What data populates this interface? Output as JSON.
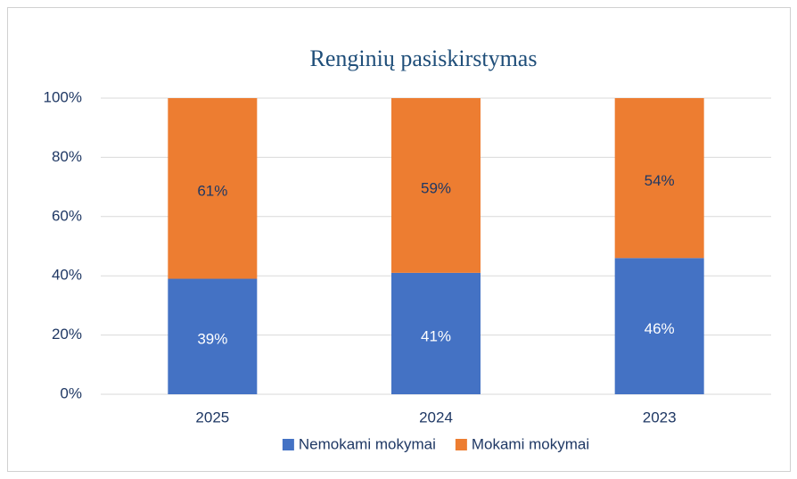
{
  "chart_data": {
    "type": "stacked_bar",
    "title": "Renginių pasiskirstymas",
    "categories": [
      "2025",
      "2024",
      "2023"
    ],
    "series": [
      {
        "name": "Nemokami mokymai",
        "color": "#4472c4",
        "values": [
          39,
          41,
          46
        ],
        "value_labels": [
          "39%",
          "41%",
          "46%"
        ]
      },
      {
        "name": "Mokami mokymai",
        "color": "#ed7d31",
        "values": [
          61,
          59,
          54
        ],
        "value_labels": [
          "61%",
          "59%",
          "54%"
        ]
      }
    ],
    "ylim": [
      0,
      100
    ],
    "yticks": [
      {
        "value": 0,
        "label": "0%"
      },
      {
        "value": 20,
        "label": "20%"
      },
      {
        "value": 40,
        "label": "40%"
      },
      {
        "value": 60,
        "label": "60%"
      },
      {
        "value": 80,
        "label": "80%"
      },
      {
        "value": 100,
        "label": "100%"
      }
    ],
    "grid": true,
    "legend": "bottom"
  }
}
